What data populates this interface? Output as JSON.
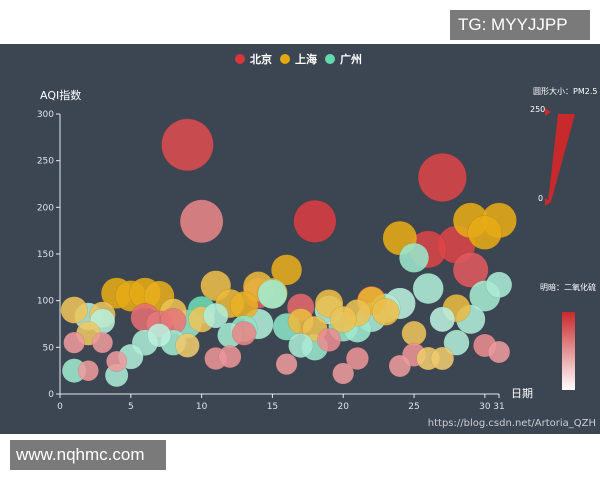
{
  "watermarks": {
    "top": "TG: MYYJJPP",
    "bottom": "www.nqhmc.com"
  },
  "url_text": "https://blog.csdn.net/Artoria_QZH",
  "chart_data": {
    "type": "scatter",
    "ylabel": "AQI指数",
    "xlabel": "日期",
    "xlim": [
      0,
      31
    ],
    "ylim": [
      0,
      300
    ],
    "xticks": [
      0,
      5,
      10,
      15,
      20,
      25,
      30,
      31
    ],
    "yticks": [
      0,
      50,
      100,
      150,
      200,
      250,
      300
    ],
    "legend_position": "top-center",
    "size_legend": {
      "label": "圆形大小：PM2.5",
      "max": 250,
      "min": 0
    },
    "color_legend": {
      "label": "明暗：二氧化硫"
    },
    "series": [
      {
        "name": "北京",
        "color": "#d8363a",
        "points": [
          {
            "x": 9,
            "y": 267,
            "pm25": 250,
            "so2": 0.85
          },
          {
            "x": 10,
            "y": 185,
            "pm25": 155,
            "so2": 0.45
          },
          {
            "x": 18,
            "y": 185,
            "pm25": 150,
            "so2": 0.95
          },
          {
            "x": 27,
            "y": 232,
            "pm25": 210,
            "so2": 0.9
          },
          {
            "x": 26,
            "y": 155,
            "pm25": 105,
            "so2": 0.9
          },
          {
            "x": 28,
            "y": 160,
            "pm25": 110,
            "so2": 0.9
          },
          {
            "x": 29,
            "y": 133,
            "pm25": 90,
            "so2": 0.75
          },
          {
            "x": 6,
            "y": 82,
            "pm25": 48,
            "so2": 0.6
          },
          {
            "x": 7,
            "y": 75,
            "pm25": 38,
            "so2": 0.55
          },
          {
            "x": 8,
            "y": 78,
            "pm25": 36,
            "so2": 0.55
          },
          {
            "x": 14,
            "y": 108,
            "pm25": 60,
            "so2": 0.7
          },
          {
            "x": 17,
            "y": 93,
            "pm25": 42,
            "so2": 0.65
          },
          {
            "x": 22,
            "y": 100,
            "pm25": 52,
            "so2": 0.7
          },
          {
            "x": 13,
            "y": 65,
            "pm25": 28,
            "so2": 0.45
          },
          {
            "x": 1,
            "y": 55,
            "pm25": 18,
            "so2": 0.3
          },
          {
            "x": 2,
            "y": 25,
            "pm25": 16,
            "so2": 0.3
          },
          {
            "x": 3,
            "y": 55,
            "pm25": 16,
            "so2": 0.3
          },
          {
            "x": 4,
            "y": 35,
            "pm25": 16,
            "so2": 0.3
          },
          {
            "x": 11,
            "y": 38,
            "pm25": 22,
            "so2": 0.35
          },
          {
            "x": 12,
            "y": 40,
            "pm25": 22,
            "so2": 0.35
          },
          {
            "x": 16,
            "y": 32,
            "pm25": 18,
            "so2": 0.3
          },
          {
            "x": 19,
            "y": 58,
            "pm25": 26,
            "so2": 0.4
          },
          {
            "x": 20,
            "y": 22,
            "pm25": 18,
            "so2": 0.3
          },
          {
            "x": 21,
            "y": 38,
            "pm25": 22,
            "so2": 0.35
          },
          {
            "x": 24,
            "y": 30,
            "pm25": 20,
            "so2": 0.3
          },
          {
            "x": 25,
            "y": 42,
            "pm25": 26,
            "so2": 0.35
          },
          {
            "x": 30,
            "y": 52,
            "pm25": 24,
            "so2": 0.4
          },
          {
            "x": 31,
            "y": 45,
            "pm25": 20,
            "so2": 0.3
          }
        ]
      },
      {
        "name": "上海",
        "color": "#e5a80d",
        "points": [
          {
            "x": 1,
            "y": 90,
            "pm25": 40,
            "so2": 0.55
          },
          {
            "x": 2,
            "y": 65,
            "pm25": 28,
            "so2": 0.5
          },
          {
            "x": 3,
            "y": 85,
            "pm25": 36,
            "so2": 0.55
          },
          {
            "x": 4,
            "y": 108,
            "pm25": 62,
            "so2": 0.95
          },
          {
            "x": 5,
            "y": 105,
            "pm25": 62,
            "so2": 0.95
          },
          {
            "x": 6,
            "y": 108,
            "pm25": 62,
            "so2": 0.95
          },
          {
            "x": 7,
            "y": 105,
            "pm25": 58,
            "so2": 0.9
          },
          {
            "x": 8,
            "y": 88,
            "pm25": 40,
            "so2": 0.6
          },
          {
            "x": 9,
            "y": 52,
            "pm25": 28,
            "so2": 0.45
          },
          {
            "x": 10,
            "y": 80,
            "pm25": 36,
            "so2": 0.55
          },
          {
            "x": 11,
            "y": 116,
            "pm25": 58,
            "so2": 0.65
          },
          {
            "x": 12,
            "y": 97,
            "pm25": 50,
            "so2": 0.75
          },
          {
            "x": 13,
            "y": 95,
            "pm25": 46,
            "so2": 0.85
          },
          {
            "x": 14,
            "y": 115,
            "pm25": 58,
            "so2": 0.75
          },
          {
            "x": 15,
            "y": 108,
            "pm25": 58,
            "so2": 0.7
          },
          {
            "x": 16,
            "y": 133,
            "pm25": 60,
            "so2": 0.9
          },
          {
            "x": 17,
            "y": 78,
            "pm25": 34,
            "so2": 0.7
          },
          {
            "x": 18,
            "y": 70,
            "pm25": 32,
            "so2": 0.6
          },
          {
            "x": 19,
            "y": 97,
            "pm25": 46,
            "so2": 0.65
          },
          {
            "x": 20,
            "y": 80,
            "pm25": 38,
            "so2": 0.6
          },
          {
            "x": 21,
            "y": 87,
            "pm25": 40,
            "so2": 0.6
          },
          {
            "x": 22,
            "y": 100,
            "pm25": 46,
            "so2": 0.8
          },
          {
            "x": 23,
            "y": 88,
            "pm25": 42,
            "so2": 0.65
          },
          {
            "x": 24,
            "y": 167,
            "pm25": 82,
            "so2": 0.95
          },
          {
            "x": 25,
            "y": 65,
            "pm25": 30,
            "so2": 0.55
          },
          {
            "x": 26,
            "y": 38,
            "pm25": 24,
            "so2": 0.45
          },
          {
            "x": 27,
            "y": 38,
            "pm25": 24,
            "so2": 0.45
          },
          {
            "x": 28,
            "y": 92,
            "pm25": 44,
            "so2": 0.7
          },
          {
            "x": 29,
            "y": 186,
            "pm25": 90,
            "so2": 0.95
          },
          {
            "x": 30,
            "y": 173,
            "pm25": 82,
            "so2": 0.95
          },
          {
            "x": 31,
            "y": 186,
            "pm25": 90,
            "so2": 0.95
          }
        ]
      },
      {
        "name": "广州",
        "color": "#62dab0",
        "points": [
          {
            "x": 1,
            "y": 25,
            "pm25": 28,
            "so2": 0.45
          },
          {
            "x": 2,
            "y": 83,
            "pm25": 44,
            "so2": 0.3
          },
          {
            "x": 3,
            "y": 78,
            "pm25": 32,
            "so2": 0.25
          },
          {
            "x": 4,
            "y": 20,
            "pm25": 24,
            "so2": 0.35
          },
          {
            "x": 5,
            "y": 40,
            "pm25": 32,
            "so2": 0.3
          },
          {
            "x": 6,
            "y": 55,
            "pm25": 36,
            "so2": 0.35
          },
          {
            "x": 7,
            "y": 63,
            "pm25": 26,
            "so2": 0.2
          },
          {
            "x": 8,
            "y": 55,
            "pm25": 34,
            "so2": 0.45
          },
          {
            "x": 9,
            "y": 75,
            "pm25": 48,
            "so2": 0.55
          },
          {
            "x": 10,
            "y": 90,
            "pm25": 44,
            "so2": 0.9
          },
          {
            "x": 11,
            "y": 84,
            "pm25": 32,
            "so2": 0.3
          },
          {
            "x": 12,
            "y": 63,
            "pm25": 32,
            "so2": 0.4
          },
          {
            "x": 13,
            "y": 70,
            "pm25": 38,
            "so2": 0.6
          },
          {
            "x": 14,
            "y": 75,
            "pm25": 58,
            "so2": 0.3
          },
          {
            "x": 15,
            "y": 107,
            "pm25": 52,
            "so2": 0.45
          },
          {
            "x": 16,
            "y": 72,
            "pm25": 42,
            "so2": 0.65
          },
          {
            "x": 17,
            "y": 52,
            "pm25": 30,
            "so2": 0.35
          },
          {
            "x": 18,
            "y": 50,
            "pm25": 38,
            "so2": 0.5
          },
          {
            "x": 19,
            "y": 90,
            "pm25": 50,
            "so2": 0.3
          },
          {
            "x": 20,
            "y": 72,
            "pm25": 54,
            "so2": 0.55
          },
          {
            "x": 21,
            "y": 70,
            "pm25": 44,
            "so2": 0.45
          },
          {
            "x": 22,
            "y": 82,
            "pm25": 52,
            "so2": 0.35
          },
          {
            "x": 23,
            "y": 92,
            "pm25": 52,
            "so2": 0.3
          },
          {
            "x": 24,
            "y": 97,
            "pm25": 64,
            "so2": 0.2
          },
          {
            "x": 25,
            "y": 146,
            "pm25": 54,
            "so2": 0.5
          },
          {
            "x": 26,
            "y": 113,
            "pm25": 60,
            "so2": 0.3
          },
          {
            "x": 27,
            "y": 80,
            "pm25": 32,
            "so2": 0.2
          },
          {
            "x": 28,
            "y": 55,
            "pm25": 34,
            "so2": 0.3
          },
          {
            "x": 29,
            "y": 80,
            "pm25": 52,
            "so2": 0.3
          },
          {
            "x": 30,
            "y": 105,
            "pm25": 62,
            "so2": 0.4
          },
          {
            "x": 31,
            "y": 117,
            "pm25": 36,
            "so2": 0.35
          }
        ]
      }
    ]
  }
}
